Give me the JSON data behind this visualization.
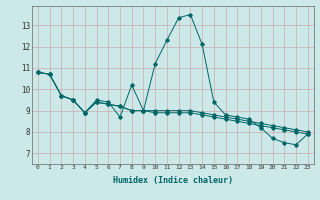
{
  "xlabel": "Humidex (Indice chaleur)",
  "bg_color": "#cce8e8",
  "line_color": "#006666",
  "xlim": [
    -0.5,
    23.5
  ],
  "ylim": [
    6.5,
    13.9
  ],
  "yticks": [
    7,
    8,
    9,
    10,
    11,
    12,
    13
  ],
  "xticks": [
    0,
    1,
    2,
    3,
    4,
    5,
    6,
    7,
    8,
    9,
    10,
    11,
    12,
    13,
    14,
    15,
    16,
    17,
    18,
    19,
    20,
    21,
    22,
    23
  ],
  "series": [
    [
      10.8,
      10.7,
      9.7,
      9.5,
      8.9,
      9.4,
      9.3,
      9.2,
      9.0,
      9.0,
      8.9,
      8.9,
      8.9,
      8.9,
      8.8,
      8.7,
      8.6,
      8.5,
      8.4,
      8.3,
      8.2,
      8.1,
      8.0,
      7.9
    ],
    [
      10.8,
      10.7,
      9.7,
      9.5,
      8.9,
      9.5,
      9.4,
      8.7,
      10.2,
      9.0,
      11.2,
      12.3,
      13.35,
      13.5,
      12.1,
      9.4,
      8.8,
      8.7,
      8.6,
      8.2,
      7.7,
      7.5,
      7.4,
      7.9
    ],
    [
      10.8,
      10.7,
      9.7,
      9.5,
      8.9,
      9.4,
      9.3,
      9.2,
      9.0,
      9.0,
      9.0,
      9.0,
      9.0,
      9.0,
      8.9,
      8.8,
      8.7,
      8.6,
      8.5,
      8.4,
      8.3,
      8.2,
      8.1,
      8.0
    ]
  ]
}
